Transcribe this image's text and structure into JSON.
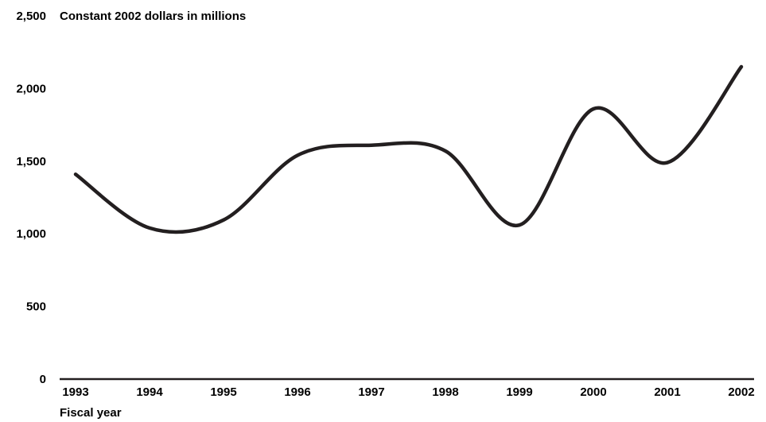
{
  "chart_data": {
    "type": "line",
    "title": "",
    "ylabel": "Constant 2002 dollars in millions",
    "xlabel": "Fiscal year",
    "x": [
      "1993",
      "1994",
      "1995",
      "1996",
      "1997",
      "1998",
      "1999",
      "2000",
      "2001",
      "2002"
    ],
    "series": [
      {
        "values": [
          1410,
          1040,
          1095,
          1540,
          1610,
          1570,
          1060,
          1860,
          1490,
          2150
        ]
      }
    ],
    "ylim": [
      0,
      2500
    ],
    "yticks": [
      0,
      500,
      1000,
      1500,
      2000,
      2500
    ],
    "ytick_labels": [
      "0",
      "500",
      "1,000",
      "1,500",
      "2,000",
      "2,500"
    ],
    "grid": false,
    "line_color": "#231f20"
  }
}
